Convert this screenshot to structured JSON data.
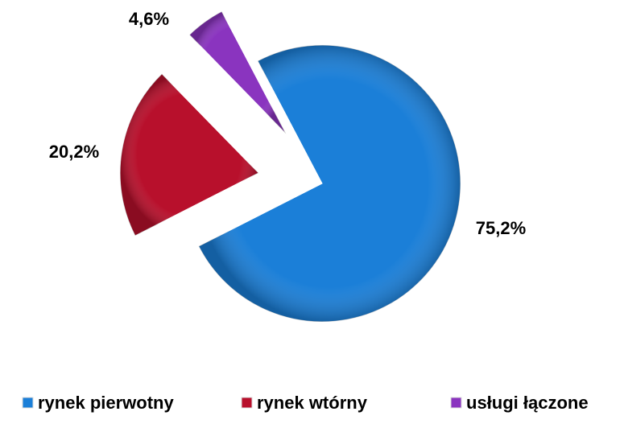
{
  "chart_data": {
    "type": "pie",
    "categories": [
      "rynek pierwotny",
      "rynek wtórny",
      "usługi łączone"
    ],
    "values": [
      75.2,
      20.2,
      4.6
    ],
    "value_labels": [
      "75,2%",
      "20,2%",
      "4,6%"
    ],
    "colors": [
      "#1b7fd8",
      "#b8102c",
      "#8a34bf"
    ],
    "legend": "bottom"
  }
}
